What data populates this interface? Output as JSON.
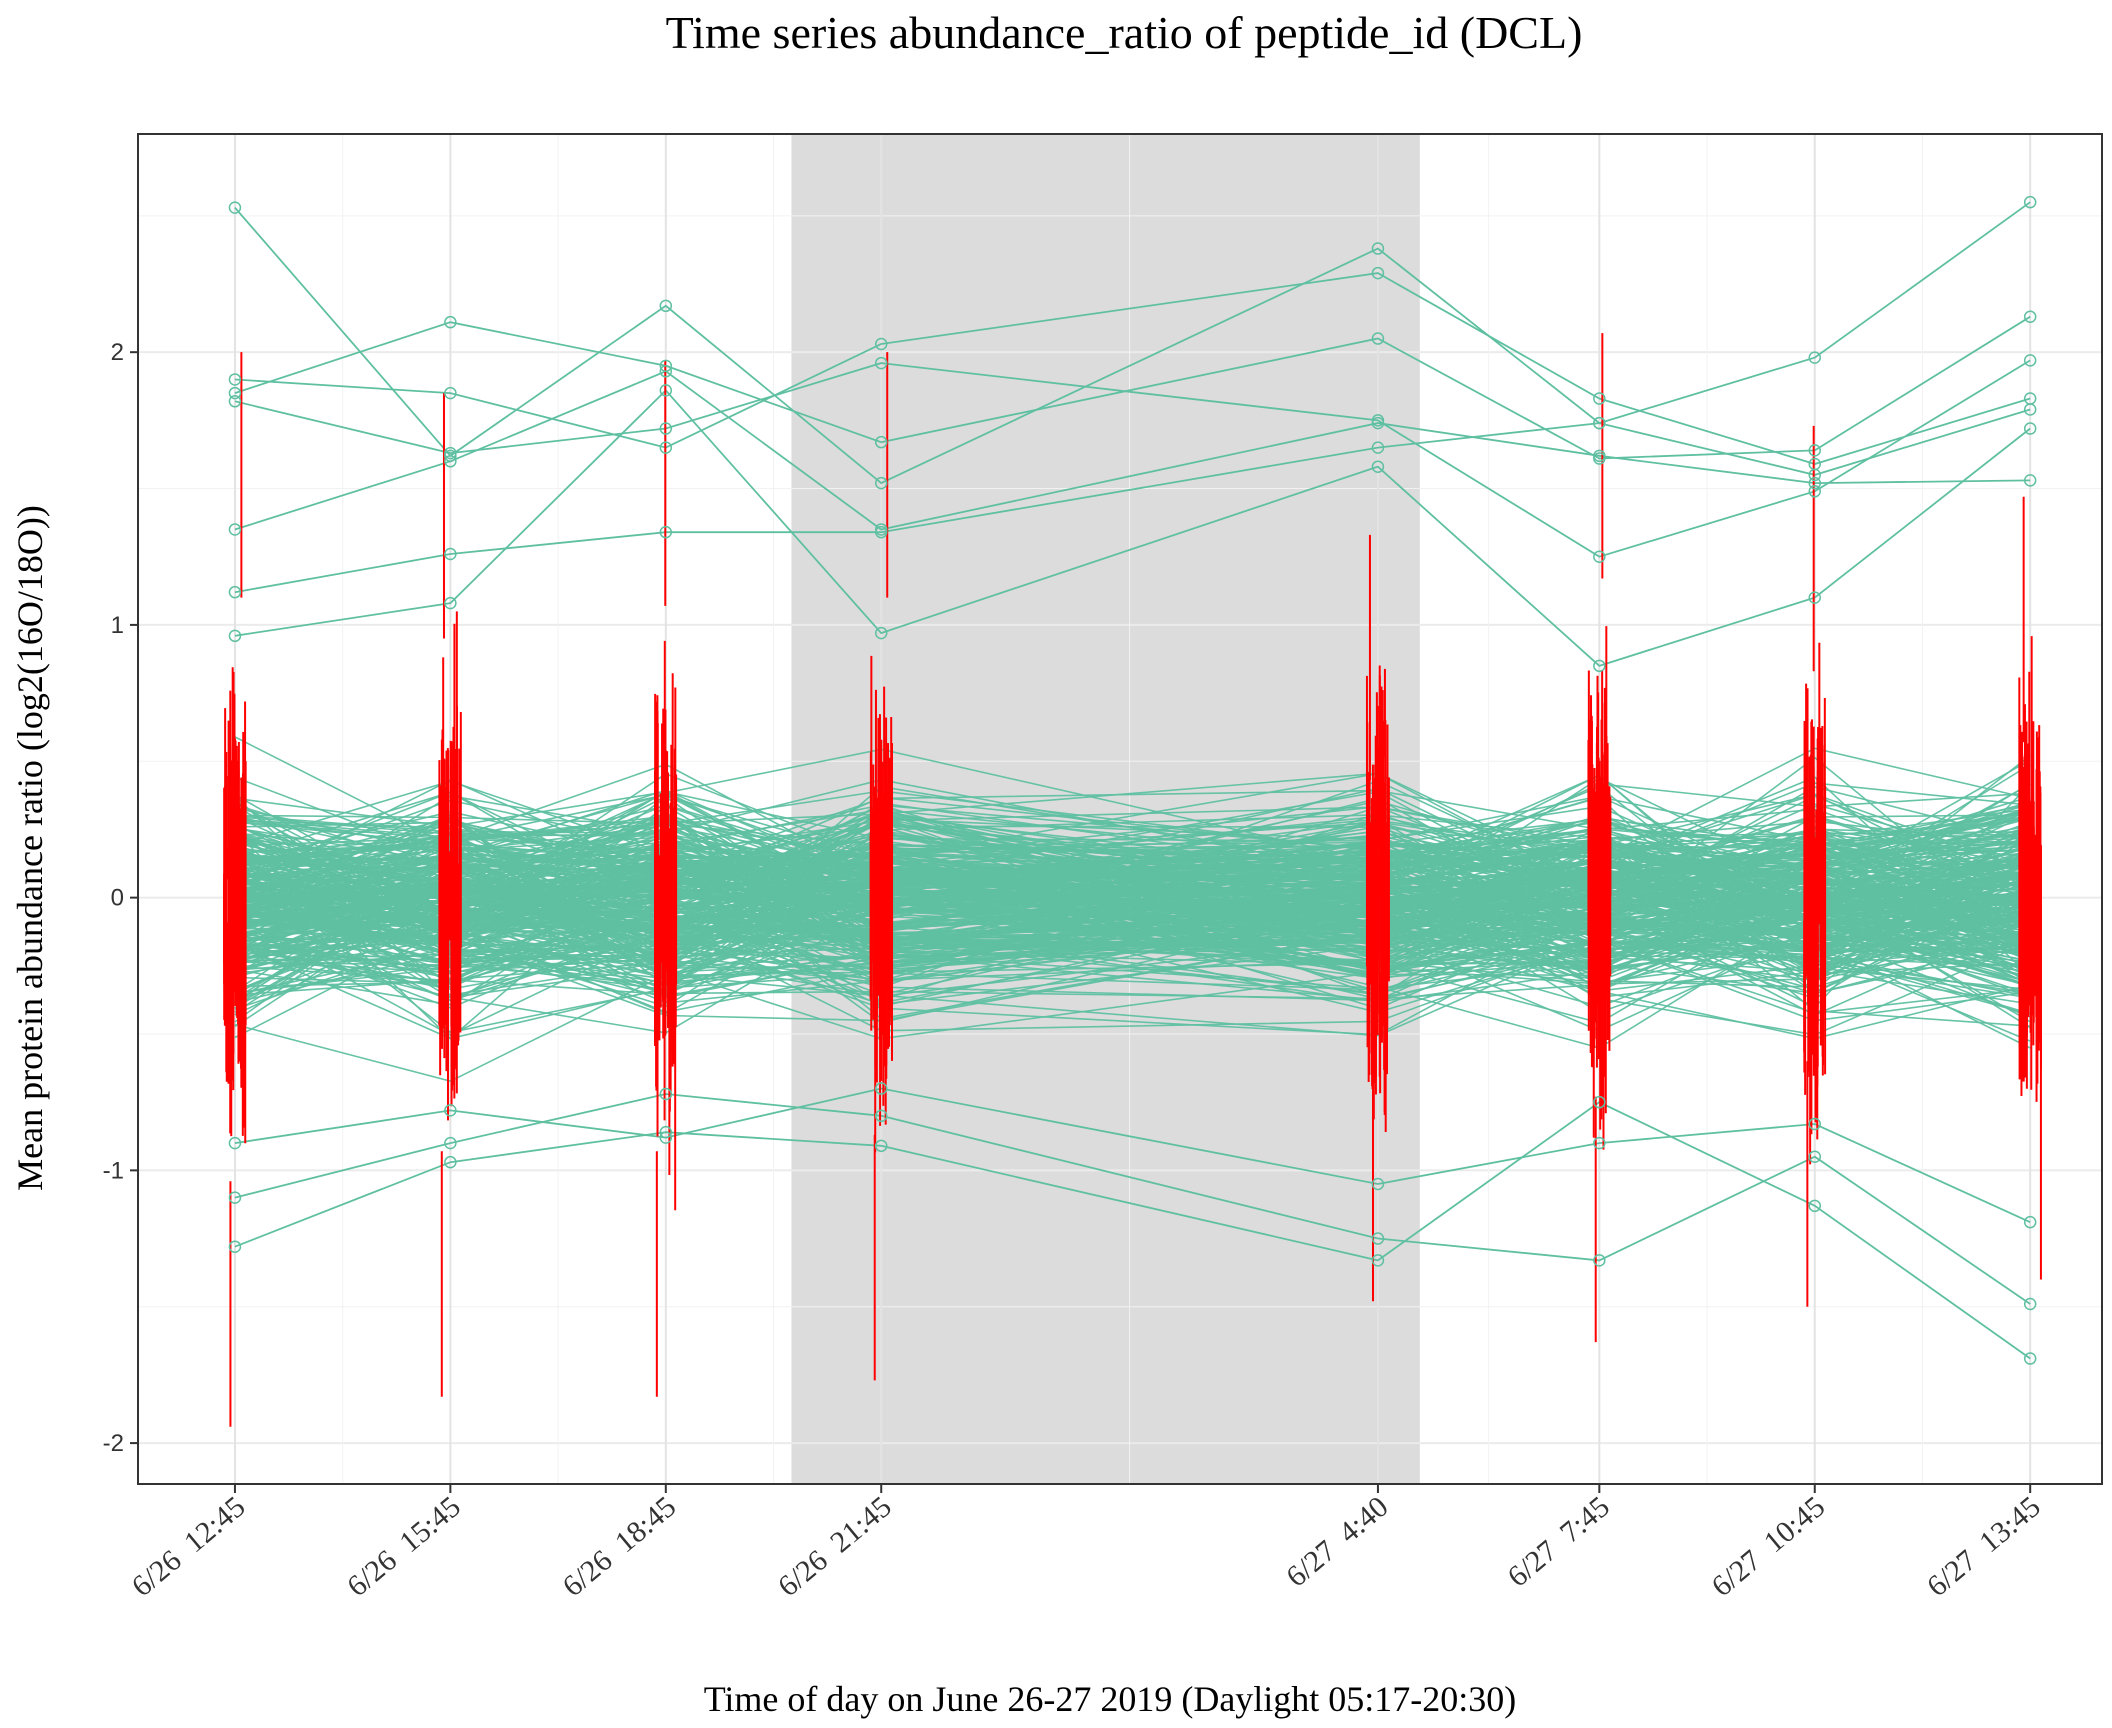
{
  "chart_data": {
    "type": "line",
    "title": "Time series abundance_ratio of peptide_id (DCL)",
    "xlabel": "Time of day on June 26-27 2019 (Daylight 05:17-20:30)",
    "ylabel": "Mean protein abundance ratio (log2(16O/18O))",
    "x_tick_labels": [
      "6/26  12:45",
      "6/26  15:45",
      "6/26  18:45",
      "6/26  21:45",
      "6/27  4:40",
      "6/27  7:45",
      "6/27  10:45",
      "6/27  13:45"
    ],
    "x_hours_since_start": [
      0,
      3,
      6,
      9,
      15.917,
      19,
      22,
      25
    ],
    "y_ticks": [
      -2,
      -1,
      0,
      1,
      2
    ],
    "ylim": [
      -2.15,
      2.8
    ],
    "xlim": [
      -1.35,
      26.0
    ],
    "night_shading": [
      7.75,
      16.5
    ],
    "grid": true,
    "colors": {
      "series": "#5fc0a1",
      "error_bars": "#ff0000",
      "night": "#dcdcdc",
      "panel_border": "#333333",
      "grid": "#ebebeb"
    },
    "highlighted_series": [
      {
        "values": [
          2.53,
          1.62,
          2.17,
          1.52,
          2.38,
          1.74,
          1.98,
          2.55
        ]
      },
      {
        "values": [
          1.9,
          1.85,
          1.65,
          2.03,
          2.29,
          1.83,
          1.59,
          1.83
        ]
      },
      {
        "values": [
          1.85,
          2.11,
          1.95,
          1.67,
          2.05,
          1.61,
          1.64,
          2.13
        ]
      },
      {
        "values": [
          1.82,
          1.63,
          1.72,
          1.96,
          1.75,
          1.25,
          1.49,
          1.97
        ]
      },
      {
        "values": [
          1.35,
          1.6,
          1.93,
          1.35,
          1.74,
          1.62,
          1.52,
          1.53
        ]
      },
      {
        "values": [
          1.12,
          1.26,
          1.34,
          1.34,
          1.65,
          1.74,
          1.55,
          1.79
        ]
      },
      {
        "values": [
          0.96,
          1.08,
          1.86,
          0.97,
          1.58,
          0.85,
          1.1,
          1.72
        ]
      },
      {
        "values": [
          -1.28,
          -0.97,
          -0.86,
          -0.91,
          -1.33,
          -0.75,
          -1.13,
          -1.69
        ]
      },
      {
        "values": [
          -1.1,
          -0.9,
          -0.72,
          -0.8,
          -1.25,
          -1.33,
          -0.95,
          -1.49
        ]
      },
      {
        "values": [
          -0.9,
          -0.78,
          -0.88,
          -0.7,
          -1.05,
          -0.9,
          -0.83,
          -1.19
        ]
      }
    ],
    "bulk_series_description_counts": {
      "series_count": 340
    },
    "error_bar_span": {
      "6/26  12:45": [
        -1.94,
        2.0
      ],
      "6/26  15:45": [
        -1.83,
        1.85
      ],
      "6/26  18:45": [
        -1.83,
        1.97
      ],
      "6/26  21:45": [
        -1.77,
        2.0
      ],
      "6/27  4:40": [
        -1.48,
        1.33
      ],
      "6/27  7:45": [
        -1.63,
        2.07
      ],
      "6/27  10:45": [
        -1.5,
        1.73
      ],
      "6/27  13:45": [
        -1.4,
        1.47
      ]
    }
  }
}
